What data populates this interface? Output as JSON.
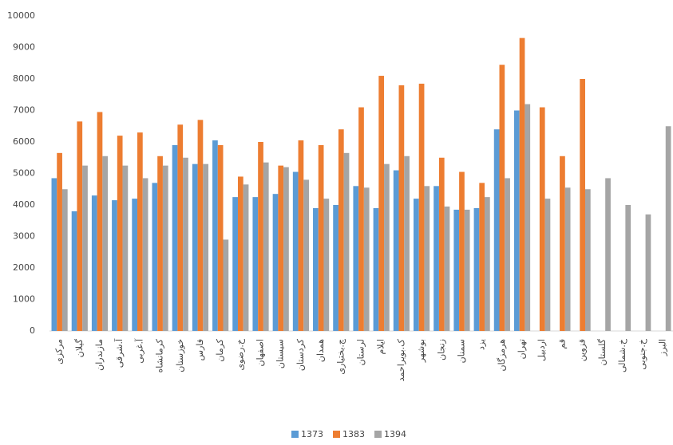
{
  "chart_data": {
    "type": "bar",
    "categories": [
      "مرکزی",
      "گیلان",
      "مازندران",
      "آ.شرقی",
      "آ.غربی",
      "کرمانشاه",
      "خوزستان",
      "فارس",
      "کرمان",
      "خ.رضوی",
      "اصفهان",
      "سیستان",
      "کردستان",
      "همدان",
      "چ.بختیاری",
      "لرستان",
      "ایلام",
      "ک.بویراحمد",
      "بوشهر",
      "زنجان",
      "سمنان",
      "یزد",
      "هرمزگان",
      "تهران",
      "اردبیل",
      "قم",
      "قزوین",
      "گلستان",
      "خ.شمالی",
      "خ.جنوبی",
      "البرز"
    ],
    "series": [
      {
        "name": "1373",
        "color": "#5b9bd5",
        "values": [
          4850,
          3800,
          4300,
          4150,
          4200,
          4700,
          5900,
          5300,
          6050,
          4250,
          4250,
          4350,
          5050,
          3900,
          4000,
          4600,
          3900,
          5100,
          4200,
          4600,
          3850,
          3900,
          6400,
          7000,
          null,
          null,
          null,
          null,
          null,
          null,
          null
        ]
      },
      {
        "name": "1383",
        "color": "#ed7d31",
        "values": [
          5650,
          6650,
          6950,
          6200,
          6300,
          5550,
          6550,
          6700,
          5900,
          4900,
          6000,
          5250,
          6050,
          5900,
          6400,
          7100,
          8100,
          7800,
          7850,
          5500,
          5050,
          4700,
          8450,
          9300,
          7100,
          5550,
          8000,
          null,
          null,
          null,
          null
        ]
      },
      {
        "name": "1394",
        "color": "#a5a5a5",
        "values": [
          4500,
          5250,
          5550,
          5250,
          4850,
          5250,
          5500,
          5300,
          2900,
          4650,
          5350,
          5200,
          4800,
          4200,
          5650,
          4550,
          5300,
          5550,
          4600,
          3950,
          3850,
          4250,
          4850,
          7200,
          4200,
          4550,
          4500,
          4850,
          4000,
          3700,
          6500
        ]
      }
    ],
    "ylim": [
      0,
      10000
    ],
    "yticks": [
      0,
      1000,
      2000,
      3000,
      4000,
      5000,
      6000,
      7000,
      8000,
      9000,
      10000
    ],
    "grid": false,
    "legend": "bottom"
  }
}
